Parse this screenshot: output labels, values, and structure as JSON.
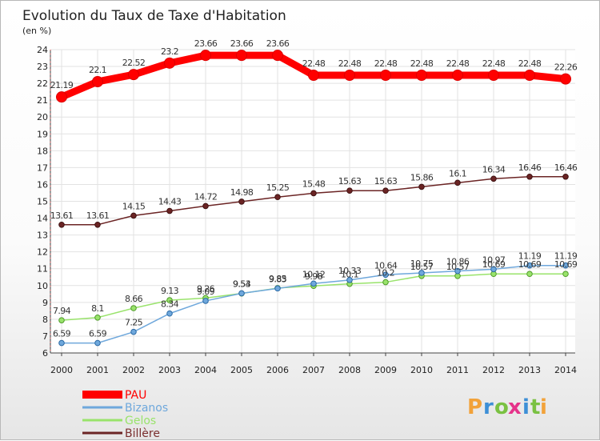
{
  "chart_data": {
    "type": "line",
    "title": "Evolution du Taux de Taxe d'Habitation",
    "subtitle": "(en %)",
    "x": [
      "2000",
      "2001",
      "2002",
      "2003",
      "2004",
      "2005",
      "2006",
      "2007",
      "2008",
      "2009",
      "2010",
      "2011",
      "2012",
      "2013",
      "2014"
    ],
    "ylim": [
      6,
      24
    ],
    "yticks": [
      6,
      7,
      8,
      9,
      10,
      11,
      12,
      13,
      14,
      15,
      16,
      17,
      18,
      19,
      20,
      21,
      22,
      23,
      24
    ],
    "grid": true,
    "legend_position": "bottom-left",
    "series": [
      {
        "name": "PAU",
        "color": "#ff0000",
        "values": [
          21.19,
          22.1,
          22.52,
          23.2,
          23.66,
          23.66,
          23.66,
          22.48,
          22.48,
          22.48,
          22.48,
          22.48,
          22.48,
          22.48,
          22.26
        ],
        "labels": [
          "21.19",
          "22.1",
          "22.52",
          "23.2",
          "23.66",
          "23.66",
          "23.66",
          "22.48",
          "22.48",
          "22.48",
          "22.48",
          "22.48",
          "22.48",
          "22.48",
          "22.26"
        ]
      },
      {
        "name": "Bizanos",
        "color": "#6fa8dc",
        "values": [
          6.59,
          6.59,
          7.25,
          8.34,
          9.09,
          9.54,
          9.83,
          10.12,
          10.33,
          10.64,
          10.75,
          10.86,
          10.97,
          11.19,
          11.19
        ],
        "labels": [
          "6.59",
          "6.59",
          "7.25",
          "8.34",
          "9.09",
          "9.54",
          "9.83",
          "10.12",
          "10.33",
          "10.64",
          "10.75",
          "10.86",
          "10.97",
          "11.19",
          "11.19"
        ]
      },
      {
        "name": "Gelos",
        "color": "#99e36b",
        "values": [
          7.94,
          8.1,
          8.66,
          9.13,
          9.26,
          9.53,
          9.85,
          9.98,
          10.1,
          10.2,
          10.57,
          10.57,
          10.69,
          10.69,
          10.69
        ],
        "labels": [
          "7.94",
          "8.1",
          "8.66",
          "9.13",
          "9.26",
          "9.53",
          "9.85",
          "9.98",
          "10.1",
          "10.2",
          "10.57",
          "10.57",
          "10.69",
          "10.69",
          "10.69"
        ]
      },
      {
        "name": "Billère",
        "color": "#7a2e2e",
        "values": [
          13.61,
          13.61,
          14.15,
          14.43,
          14.72,
          14.98,
          15.25,
          15.48,
          15.63,
          15.63,
          15.86,
          16.1,
          16.34,
          16.46,
          16.46
        ],
        "labels": [
          "13.61",
          "13.61",
          "14.15",
          "14.43",
          "14.72",
          "14.98",
          "15.25",
          "15.48",
          "15.63",
          "15.63",
          "15.86",
          "16.1",
          "16.34",
          "16.46",
          "16.46"
        ]
      }
    ]
  },
  "logo": {
    "letters": [
      "P",
      "r",
      "o",
      "x",
      "i",
      "t",
      "i"
    ],
    "colors": [
      "#f2a23a",
      "#3d8fd6",
      "#7ac142",
      "#e5338a",
      "#3d8fd6",
      "#7ac142",
      "#f2a23a"
    ]
  }
}
